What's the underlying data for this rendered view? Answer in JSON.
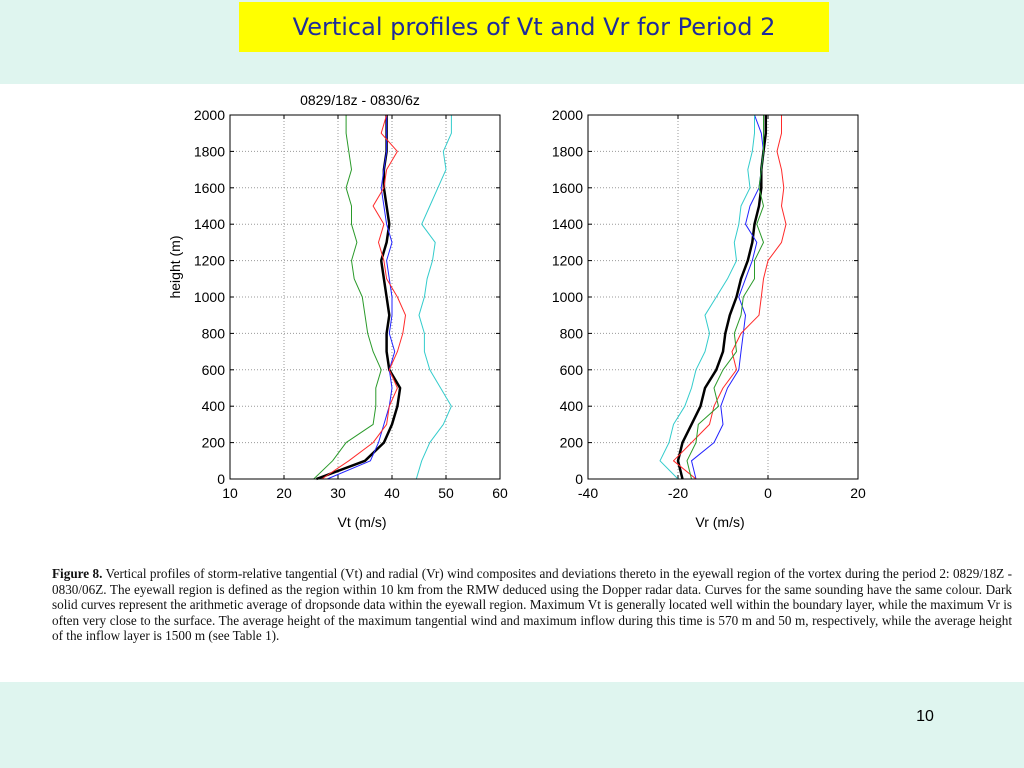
{
  "slide": {
    "title": "Vertical profiles of Vt and Vr for Period 2",
    "page_number": "10"
  },
  "caption": {
    "label": "Figure 8.",
    "text": "Vertical profiles of storm-relative tangential (Vt) and radial (Vr) wind composites and deviations thereto in the eyewall region of the vortex during the period 2: 0829/18Z - 0830/06Z. The eyewall region is defined as the region within 10 km from the RMW deduced using the Dopper radar data. Curves for the same sounding have the same colour. Dark solid curves represent the arithmetic average of dropsonde data within the eyewall region. Maximum Vt is generally located well within the boundary layer, while the maximum Vr is often very close to the surface. The average height of the maximum tangential wind and maximum inflow during this time is 570 m and 50 m, respectively, while the average height of the inflow layer is 1500 m (see Table 1)."
  },
  "chart_data": [
    {
      "type": "line",
      "title": "0829/18z - 0830/6z",
      "xlabel": "Vt (m/s)",
      "ylabel": "height (m)",
      "xlim": [
        10,
        60
      ],
      "ylim": [
        0,
        2000
      ],
      "xticks": [
        "10",
        "20",
        "30",
        "40",
        "50",
        "60"
      ],
      "yticks": [
        "0",
        "200",
        "400",
        "600",
        "800",
        "1000",
        "1200",
        "1400",
        "1600",
        "1800",
        "2000"
      ],
      "grid": true,
      "y": [
        0,
        100,
        200,
        300,
        400,
        500,
        600,
        700,
        800,
        900,
        1000,
        1100,
        1200,
        1300,
        1400,
        1500,
        1600,
        1700,
        1800,
        1900,
        2000
      ],
      "series": [
        {
          "color": "#000000",
          "width": 2.5,
          "values": [
            26,
            35,
            38.5,
            40,
            41,
            41.5,
            39.5,
            39,
            39,
            39.5,
            39,
            38.5,
            38,
            39,
            39.5,
            39,
            38.5,
            38.5,
            39,
            39,
            39
          ]
        },
        {
          "color": "#2222ff",
          "width": 1,
          "values": [
            28,
            36,
            37.5,
            38.5,
            39.5,
            40,
            39.5,
            40.5,
            39.5,
            40,
            40,
            39.5,
            39,
            40,
            39,
            38.5,
            38,
            38.5,
            39,
            39,
            39
          ]
        },
        {
          "color": "#ff2a2a",
          "width": 1,
          "values": [
            27,
            32,
            36.5,
            39,
            39.5,
            41,
            39.5,
            41,
            42,
            42.5,
            41,
            39,
            38.5,
            37.5,
            38.5,
            36.5,
            38.5,
            39,
            41,
            38,
            39
          ]
        },
        {
          "color": "#2a9a2a",
          "width": 1,
          "values": [
            25.5,
            29,
            31.5,
            36.5,
            37,
            37,
            38,
            36.5,
            35.5,
            35,
            34.5,
            33,
            32.5,
            33.5,
            32.5,
            32.5,
            31.5,
            32.5,
            32,
            31.5,
            31.5
          ]
        },
        {
          "color": "#33cccc",
          "width": 1,
          "values": [
            44.5,
            45.5,
            47,
            49.5,
            51,
            49,
            47,
            46,
            46,
            45,
            46,
            46.5,
            47.5,
            48,
            45.5,
            47,
            48.5,
            50,
            49.5,
            51,
            51
          ]
        }
      ]
    },
    {
      "type": "line",
      "xlabel": "Vr (m/s)",
      "ylabel": "",
      "xlim": [
        -40,
        20
      ],
      "ylim": [
        0,
        2000
      ],
      "xticks": [
        "-40",
        "-20",
        "0",
        "20"
      ],
      "yticks": [
        "0",
        "200",
        "400",
        "600",
        "800",
        "1000",
        "1200",
        "1400",
        "1600",
        "1800",
        "2000"
      ],
      "grid": true,
      "y": [
        0,
        100,
        200,
        300,
        400,
        500,
        600,
        700,
        800,
        900,
        1000,
        1100,
        1200,
        1300,
        1400,
        1500,
        1600,
        1700,
        1800,
        1900,
        2000
      ],
      "series": [
        {
          "color": "#000000",
          "width": 2.5,
          "values": [
            -19,
            -20,
            -19,
            -17,
            -15,
            -14,
            -11.5,
            -10,
            -9.5,
            -8.5,
            -7,
            -6,
            -4.5,
            -3.5,
            -3,
            -2,
            -1.5,
            -1.5,
            -1,
            -0.5,
            -0.5
          ]
        },
        {
          "color": "#2222ff",
          "width": 1,
          "values": [
            -16,
            -17,
            -12,
            -10,
            -10.5,
            -9,
            -6.5,
            -6,
            -5.5,
            -5,
            -6.5,
            -5,
            -3.5,
            -2.5,
            -5,
            -4,
            -2,
            -1.5,
            -1,
            -1.5,
            -3
          ]
        },
        {
          "color": "#ff2a2a",
          "width": 1,
          "values": [
            -16,
            -21,
            -17,
            -13,
            -12,
            -10,
            -7,
            -8,
            -6,
            -2,
            -1.5,
            -1,
            0,
            3,
            4,
            3,
            3.5,
            3,
            2,
            3,
            3
          ]
        },
        {
          "color": "#2a9a2a",
          "width": 1,
          "values": [
            -17,
            -18,
            -16,
            -15.5,
            -11,
            -12,
            -10,
            -7,
            -7.5,
            -6,
            -5.5,
            -3,
            -3,
            -1,
            -2.5,
            -1,
            -2,
            -1.5,
            -1,
            -1,
            -1
          ]
        },
        {
          "color": "#33cccc",
          "width": 1,
          "values": [
            -20,
            -24,
            -22,
            -21,
            -18.5,
            -17,
            -16,
            -14,
            -13,
            -14,
            -11.5,
            -9,
            -7,
            -7.5,
            -6.5,
            -6,
            -4,
            -4.5,
            -3.5,
            -3,
            -3
          ]
        }
      ]
    }
  ]
}
